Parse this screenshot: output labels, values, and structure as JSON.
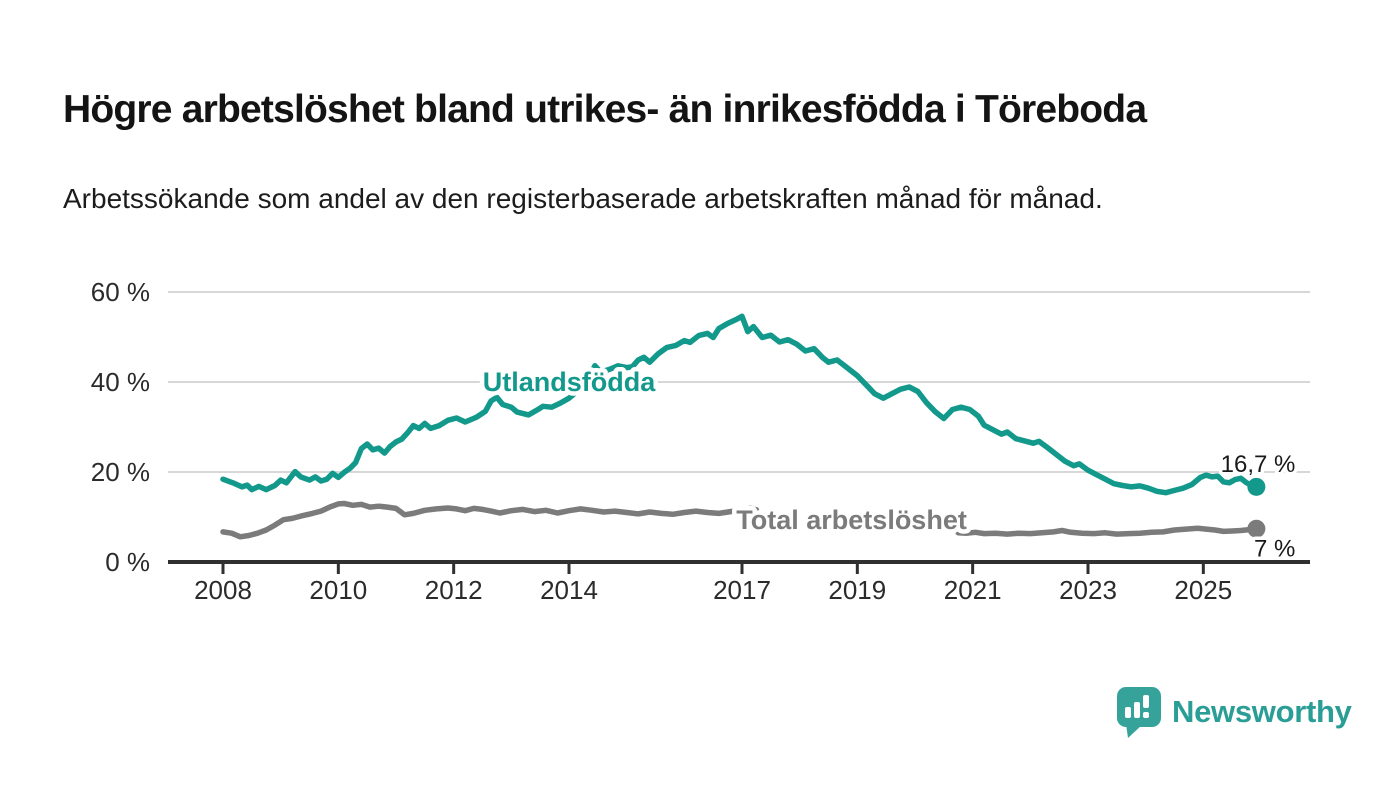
{
  "header": {
    "title": "Högre arbetslöshet bland utrikes- än inrikesfödda i Töreboda",
    "subtitle": "Arbetssökande som andel av den registerbaserade arbetskraften månad för månad."
  },
  "chart_data": {
    "type": "line",
    "title": "Högre arbetslöshet bland utrikes- än inrikesfödda i Töreboda",
    "subtitle": "Arbetssökande som andel av den registerbaserade arbetskraften månad för månad.",
    "x_unit": "year (decimal = month position)",
    "y_unit": "percent of registered labour force",
    "xlim": [
      2006.7,
      2026.85
    ],
    "ylim": [
      0,
      62
    ],
    "grid": "horizontal-only",
    "yticks": [
      {
        "label": "0 %",
        "value": 0
      },
      {
        "label": "20 %",
        "value": 20
      },
      {
        "label": "40 %",
        "value": 40
      },
      {
        "label": "60 %",
        "value": 60
      }
    ],
    "xticks": [
      {
        "label": "2008",
        "year": 2008
      },
      {
        "label": "2010",
        "year": 2010
      },
      {
        "label": "2012",
        "year": 2012
      },
      {
        "label": "2014",
        "year": 2014
      },
      {
        "label": "2017",
        "year": 2017
      },
      {
        "label": "2019",
        "year": 2019
      },
      {
        "label": "2021",
        "year": 2021
      },
      {
        "label": "2023",
        "year": 2023
      },
      {
        "label": "2025",
        "year": 2025
      }
    ],
    "series": [
      {
        "name": "Utlandsfödda",
        "color": "#13998c",
        "end_label": "16,7 %",
        "end_value": 16.7,
        "label_anchor": {
          "x": 2014.0,
          "y": 40.0
        },
        "points": [
          [
            2008.0,
            18.4
          ],
          [
            2008.17,
            17.6
          ],
          [
            2008.33,
            16.7
          ],
          [
            2008.42,
            17.1
          ],
          [
            2008.5,
            16.1
          ],
          [
            2008.62,
            16.8
          ],
          [
            2008.75,
            16.1
          ],
          [
            2008.9,
            17.0
          ],
          [
            2009.0,
            18.2
          ],
          [
            2009.1,
            17.6
          ],
          [
            2009.25,
            20.1
          ],
          [
            2009.35,
            18.9
          ],
          [
            2009.5,
            18.2
          ],
          [
            2009.6,
            18.9
          ],
          [
            2009.7,
            18.0
          ],
          [
            2009.8,
            18.4
          ],
          [
            2009.9,
            19.7
          ],
          [
            2010.0,
            18.8
          ],
          [
            2010.1,
            19.9
          ],
          [
            2010.2,
            20.8
          ],
          [
            2010.3,
            22.1
          ],
          [
            2010.4,
            25.2
          ],
          [
            2010.5,
            26.2
          ],
          [
            2010.6,
            24.9
          ],
          [
            2010.7,
            25.3
          ],
          [
            2010.8,
            24.2
          ],
          [
            2010.9,
            25.7
          ],
          [
            2011.0,
            26.7
          ],
          [
            2011.1,
            27.3
          ],
          [
            2011.2,
            28.7
          ],
          [
            2011.3,
            30.3
          ],
          [
            2011.4,
            29.7
          ],
          [
            2011.5,
            30.8
          ],
          [
            2011.6,
            29.7
          ],
          [
            2011.75,
            30.3
          ],
          [
            2011.9,
            31.5
          ],
          [
            2012.05,
            32.0
          ],
          [
            2012.2,
            31.1
          ],
          [
            2012.4,
            32.2
          ],
          [
            2012.55,
            33.5
          ],
          [
            2012.65,
            35.8
          ],
          [
            2012.75,
            36.6
          ],
          [
            2012.85,
            35.0
          ],
          [
            2013.0,
            34.4
          ],
          [
            2013.1,
            33.3
          ],
          [
            2013.3,
            32.7
          ],
          [
            2013.45,
            33.8
          ],
          [
            2013.55,
            34.6
          ],
          [
            2013.7,
            34.4
          ],
          [
            2013.85,
            35.3
          ],
          [
            2014.0,
            36.4
          ],
          [
            2014.15,
            38.0
          ],
          [
            2014.3,
            40.0
          ],
          [
            2014.45,
            43.6
          ],
          [
            2014.55,
            42.2
          ],
          [
            2014.7,
            42.8
          ],
          [
            2014.85,
            43.6
          ],
          [
            2015.0,
            43.2
          ],
          [
            2015.1,
            43.4
          ],
          [
            2015.2,
            44.9
          ],
          [
            2015.3,
            45.5
          ],
          [
            2015.4,
            44.4
          ],
          [
            2015.55,
            46.3
          ],
          [
            2015.7,
            47.7
          ],
          [
            2015.85,
            48.1
          ],
          [
            2016.0,
            49.2
          ],
          [
            2016.1,
            48.8
          ],
          [
            2016.25,
            50.3
          ],
          [
            2016.4,
            50.8
          ],
          [
            2016.5,
            49.9
          ],
          [
            2016.6,
            51.9
          ],
          [
            2016.75,
            53.0
          ],
          [
            2016.9,
            53.9
          ],
          [
            2017.0,
            54.6
          ],
          [
            2017.1,
            51.2
          ],
          [
            2017.2,
            52.3
          ],
          [
            2017.35,
            49.9
          ],
          [
            2017.5,
            50.4
          ],
          [
            2017.65,
            48.9
          ],
          [
            2017.8,
            49.4
          ],
          [
            2017.95,
            48.4
          ],
          [
            2018.1,
            46.9
          ],
          [
            2018.25,
            47.4
          ],
          [
            2018.4,
            45.4
          ],
          [
            2018.5,
            44.4
          ],
          [
            2018.65,
            44.9
          ],
          [
            2018.8,
            43.4
          ],
          [
            2019.0,
            41.4
          ],
          [
            2019.15,
            39.4
          ],
          [
            2019.3,
            37.4
          ],
          [
            2019.45,
            36.4
          ],
          [
            2019.6,
            37.4
          ],
          [
            2019.75,
            38.4
          ],
          [
            2019.9,
            38.9
          ],
          [
            2020.05,
            37.9
          ],
          [
            2020.2,
            35.4
          ],
          [
            2020.35,
            33.4
          ],
          [
            2020.5,
            31.9
          ],
          [
            2020.65,
            33.9
          ],
          [
            2020.8,
            34.4
          ],
          [
            2020.95,
            33.9
          ],
          [
            2021.1,
            32.4
          ],
          [
            2021.2,
            30.4
          ],
          [
            2021.35,
            29.4
          ],
          [
            2021.5,
            28.4
          ],
          [
            2021.6,
            28.9
          ],
          [
            2021.75,
            27.4
          ],
          [
            2021.9,
            26.9
          ],
          [
            2022.05,
            26.4
          ],
          [
            2022.15,
            26.8
          ],
          [
            2022.3,
            25.4
          ],
          [
            2022.45,
            23.9
          ],
          [
            2022.6,
            22.4
          ],
          [
            2022.75,
            21.4
          ],
          [
            2022.85,
            21.8
          ],
          [
            2023.0,
            20.4
          ],
          [
            2023.15,
            19.4
          ],
          [
            2023.3,
            18.4
          ],
          [
            2023.45,
            17.4
          ],
          [
            2023.6,
            17.0
          ],
          [
            2023.75,
            16.7
          ],
          [
            2023.9,
            16.9
          ],
          [
            2024.05,
            16.4
          ],
          [
            2024.2,
            15.7
          ],
          [
            2024.35,
            15.4
          ],
          [
            2024.5,
            15.9
          ],
          [
            2024.65,
            16.4
          ],
          [
            2024.8,
            17.2
          ],
          [
            2024.95,
            18.8
          ],
          [
            2025.05,
            19.3
          ],
          [
            2025.15,
            18.9
          ],
          [
            2025.25,
            19.1
          ],
          [
            2025.35,
            17.8
          ],
          [
            2025.45,
            17.6
          ],
          [
            2025.55,
            18.3
          ],
          [
            2025.65,
            18.6
          ],
          [
            2025.75,
            17.6
          ],
          [
            2025.85,
            17.0
          ],
          [
            2025.92,
            16.7
          ]
        ]
      },
      {
        "name": "Total arbetslöshet",
        "color": "#7b7b7b",
        "end_label": "7 %",
        "end_value": 7,
        "label_anchor": {
          "x": 2018.9,
          "y": 9.3
        },
        "points": [
          [
            2008.0,
            6.7
          ],
          [
            2008.15,
            6.4
          ],
          [
            2008.3,
            5.6
          ],
          [
            2008.45,
            5.9
          ],
          [
            2008.6,
            6.4
          ],
          [
            2008.75,
            7.1
          ],
          [
            2008.9,
            8.2
          ],
          [
            2009.05,
            9.4
          ],
          [
            2009.2,
            9.7
          ],
          [
            2009.35,
            10.2
          ],
          [
            2009.55,
            10.8
          ],
          [
            2009.7,
            11.3
          ],
          [
            2009.85,
            12.2
          ],
          [
            2010.0,
            12.9
          ],
          [
            2010.1,
            13.0
          ],
          [
            2010.25,
            12.6
          ],
          [
            2010.4,
            12.8
          ],
          [
            2010.55,
            12.2
          ],
          [
            2010.7,
            12.4
          ],
          [
            2010.85,
            12.2
          ],
          [
            2011.0,
            11.9
          ],
          [
            2011.15,
            10.5
          ],
          [
            2011.3,
            10.8
          ],
          [
            2011.5,
            11.5
          ],
          [
            2011.7,
            11.8
          ],
          [
            2011.9,
            12.0
          ],
          [
            2012.05,
            11.8
          ],
          [
            2012.2,
            11.4
          ],
          [
            2012.35,
            11.9
          ],
          [
            2012.5,
            11.7
          ],
          [
            2012.65,
            11.3
          ],
          [
            2012.8,
            10.9
          ],
          [
            2013.0,
            11.4
          ],
          [
            2013.2,
            11.7
          ],
          [
            2013.4,
            11.2
          ],
          [
            2013.6,
            11.5
          ],
          [
            2013.8,
            10.9
          ],
          [
            2014.0,
            11.4
          ],
          [
            2014.2,
            11.8
          ],
          [
            2014.4,
            11.5
          ],
          [
            2014.6,
            11.1
          ],
          [
            2014.8,
            11.3
          ],
          [
            2015.0,
            11.0
          ],
          [
            2015.2,
            10.7
          ],
          [
            2015.4,
            11.1
          ],
          [
            2015.6,
            10.8
          ],
          [
            2015.8,
            10.6
          ],
          [
            2016.0,
            11.0
          ],
          [
            2016.2,
            11.3
          ],
          [
            2016.4,
            11.0
          ],
          [
            2016.6,
            10.8
          ],
          [
            2016.8,
            11.2
          ],
          [
            2017.0,
            11.6
          ],
          [
            2017.15,
            11.9
          ],
          [
            2017.25,
            11.6
          ],
          null,
          [
            2020.75,
            6.5
          ],
          [
            2020.9,
            6.4
          ],
          [
            2021.05,
            6.6
          ],
          [
            2021.2,
            6.3
          ],
          [
            2021.4,
            6.4
          ],
          [
            2021.6,
            6.2
          ],
          [
            2021.8,
            6.4
          ],
          [
            2022.0,
            6.3
          ],
          [
            2022.2,
            6.5
          ],
          [
            2022.4,
            6.7
          ],
          [
            2022.55,
            7.0
          ],
          [
            2022.7,
            6.6
          ],
          [
            2022.9,
            6.4
          ],
          [
            2023.1,
            6.3
          ],
          [
            2023.3,
            6.5
          ],
          [
            2023.5,
            6.2
          ],
          [
            2023.7,
            6.3
          ],
          [
            2023.9,
            6.4
          ],
          [
            2024.1,
            6.6
          ],
          [
            2024.3,
            6.7
          ],
          [
            2024.5,
            7.1
          ],
          [
            2024.7,
            7.3
          ],
          [
            2024.9,
            7.5
          ],
          [
            2025.05,
            7.3
          ],
          [
            2025.2,
            7.1
          ],
          [
            2025.35,
            6.8
          ],
          [
            2025.5,
            6.9
          ],
          [
            2025.65,
            7.0
          ],
          [
            2025.8,
            7.2
          ],
          [
            2025.92,
            7.4
          ]
        ]
      }
    ]
  },
  "footer": {
    "brand": "Newsworthy",
    "brand_color": "#2a9e96",
    "logo_icon": "speech-bubble-bar-chart"
  }
}
